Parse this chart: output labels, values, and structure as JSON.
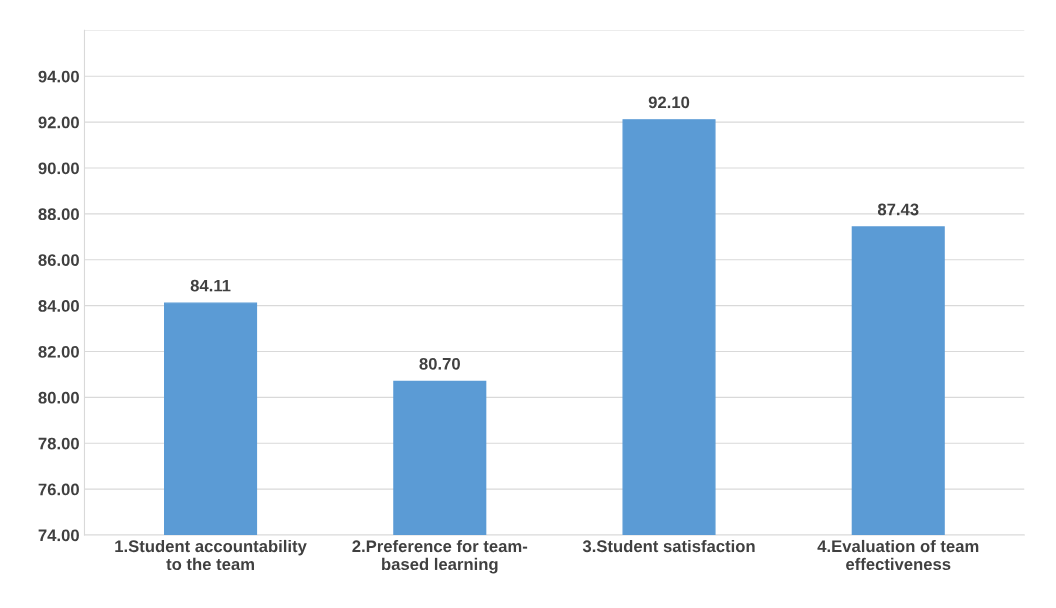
{
  "chart_data": {
    "type": "bar",
    "categories": [
      "1.Student accountability\nto the team",
      "2.Preference for team-\nbased learning",
      "3.Student satisfaction",
      "4.Evaluation of team\neffectiveness"
    ],
    "values": [
      84.11,
      80.7,
      92.1,
      87.43
    ],
    "value_labels": [
      "84.11",
      "80.70",
      "92.10",
      "87.43"
    ],
    "color": "#5b9bd5",
    "ylim": [
      74,
      96
    ],
    "yticks": [
      {
        "value": 74,
        "label": "74.00"
      },
      {
        "value": 76,
        "label": "76.00"
      },
      {
        "value": 78,
        "label": "78.00"
      },
      {
        "value": 80,
        "label": "80.00"
      },
      {
        "value": 82,
        "label": "82.00"
      },
      {
        "value": 84,
        "label": "84.00"
      },
      {
        "value": 86,
        "label": "86.00"
      },
      {
        "value": 88,
        "label": "88.00"
      },
      {
        "value": 90,
        "label": "90.00"
      },
      {
        "value": 92,
        "label": "92.00"
      },
      {
        "value": 94,
        "label": "94.00"
      },
      {
        "value": 96,
        "label": null
      }
    ],
    "grid": "y"
  }
}
